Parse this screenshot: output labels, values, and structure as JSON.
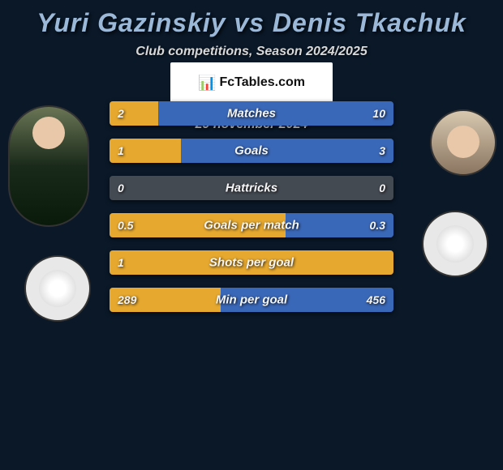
{
  "title": "Yuri Gazinskiy vs Denis Tkachuk",
  "subtitle": "Club competitions, Season 2024/2025",
  "date": "29 november 2024",
  "attribution": "FcTables.com",
  "colors": {
    "left": "#e6a82e",
    "right": "#3a68b8",
    "neutral": "#444a52",
    "background": "#0a1828"
  },
  "stats": [
    {
      "label": "Matches",
      "left_val": "2",
      "right_val": "10",
      "left_pct": 17,
      "right_pct": 83
    },
    {
      "label": "Goals",
      "left_val": "1",
      "right_val": "3",
      "left_pct": 25,
      "right_pct": 75
    },
    {
      "label": "Hattricks",
      "left_val": "0",
      "right_val": "0",
      "left_pct": 0,
      "right_pct": 0
    },
    {
      "label": "Goals per match",
      "left_val": "0.5",
      "right_val": "0.3",
      "left_pct": 62,
      "right_pct": 38
    },
    {
      "label": "Shots per goal",
      "left_val": "1",
      "right_val": "",
      "left_pct": 100,
      "right_pct": 0
    },
    {
      "label": "Min per goal",
      "left_val": "289",
      "right_val": "456",
      "left_pct": 39,
      "right_pct": 61
    }
  ]
}
